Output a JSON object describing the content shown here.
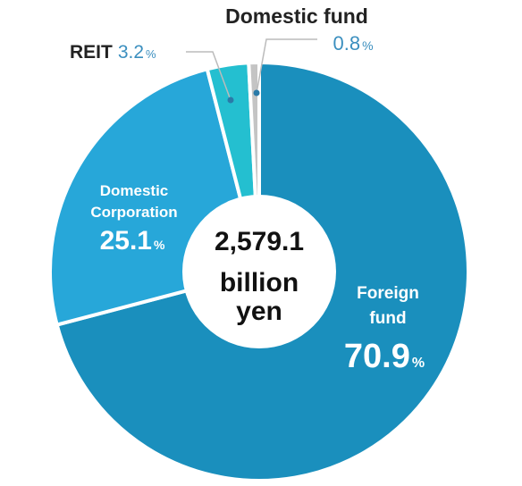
{
  "chart_data": {
    "type": "pie",
    "center_label": {
      "line1": "2,579.1",
      "line2": "billion",
      "line3": "yen"
    },
    "percent_sign": "%",
    "series": [
      {
        "name": "Foreign fund",
        "name_lines": [
          "Foreign",
          "fund"
        ],
        "value": 70.9,
        "value_text": "70.9",
        "color": "#1a8fbd"
      },
      {
        "name": "Domestic Corporation",
        "name_lines": [
          "Domestic",
          "Corporation"
        ],
        "value": 25.1,
        "value_text": "25.1",
        "color": "#27a7d9"
      },
      {
        "name": "REIT",
        "name_lines": [
          "REIT"
        ],
        "value": 3.2,
        "value_text": "3.2",
        "color": "#24bfd0"
      },
      {
        "name": "Domestic fund",
        "name_lines": [
          "Domestic fund"
        ],
        "value": 0.8,
        "value_text": "0.8",
        "color": "#c4c4c4"
      }
    ]
  },
  "colors": {
    "label_value_dark": "#3b8fbf",
    "label_dark_text": "#222222",
    "inner_label_text": "#ffffff",
    "center_text": "#111111"
  }
}
